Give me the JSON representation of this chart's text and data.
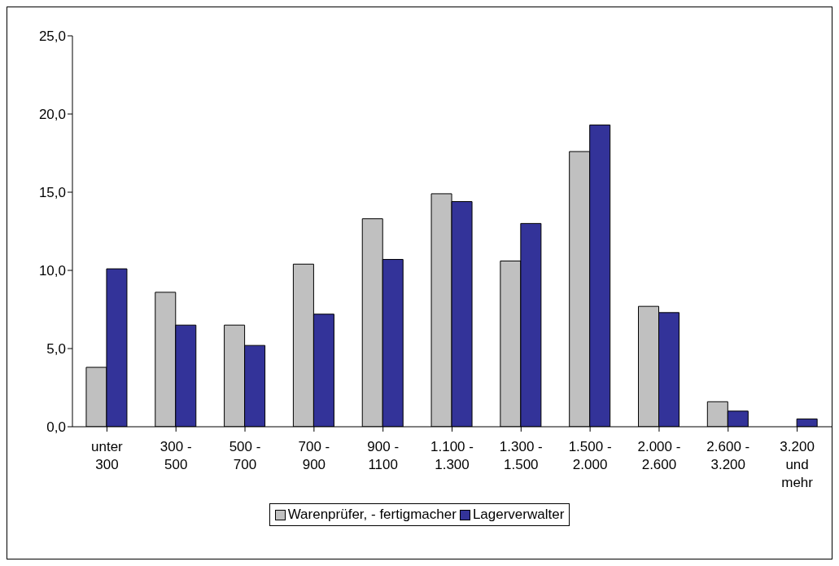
{
  "chart_data": {
    "type": "bar",
    "categories": [
      "unter 300",
      "300 - 500",
      "500 - 700",
      "700 - 900",
      "900 - 1100",
      "1.100 - 1.300",
      "1.300 - 1.500",
      "1.500 - 2.000",
      "2.000 - 2.600",
      "2.600 - 3.200",
      "3.200 und mehr"
    ],
    "series": [
      {
        "name": "Warenprüfer, - fertigmacher",
        "color": "#c0c0c0",
        "values": [
          3.8,
          8.6,
          6.5,
          10.4,
          13.3,
          14.9,
          10.6,
          17.6,
          7.7,
          1.6,
          null
        ]
      },
      {
        "name": "Lagerverwalter",
        "color": "#333399",
        "values": [
          10.1,
          6.5,
          5.2,
          7.2,
          10.7,
          14.4,
          13.0,
          19.3,
          7.3,
          1.0,
          0.5
        ]
      }
    ],
    "ylim": [
      0,
      25
    ],
    "yticks": [
      {
        "value": 0,
        "label": "0,0"
      },
      {
        "value": 5,
        "label": "5,0"
      },
      {
        "value": 10,
        "label": "10,0"
      },
      {
        "value": 15,
        "label": "15,0"
      },
      {
        "value": 20,
        "label": "20,0"
      },
      {
        "value": 25,
        "label": "25,0"
      }
    ],
    "grid": false,
    "legend": "bottom"
  }
}
